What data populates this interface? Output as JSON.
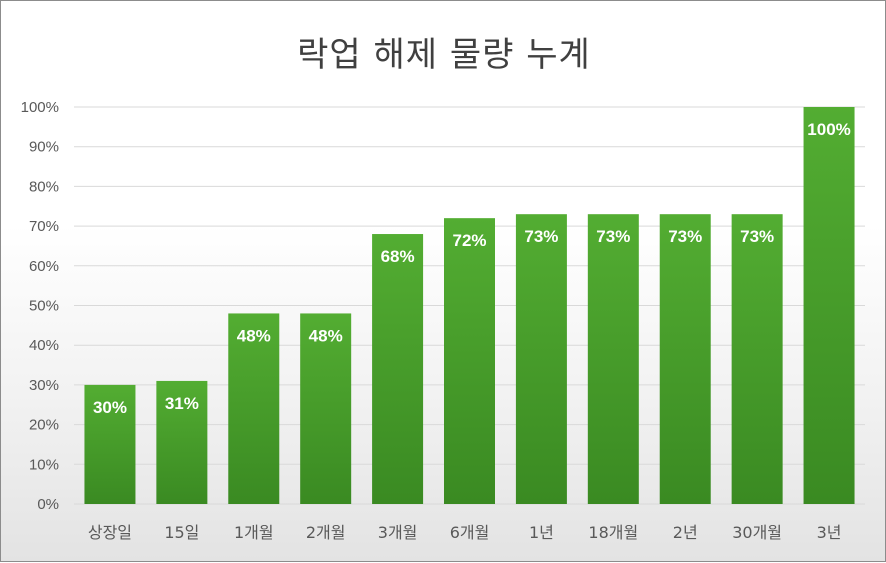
{
  "chart_data": {
    "type": "bar",
    "title": "락업 해제 물량 누계",
    "categories": [
      "상장일",
      "15일",
      "1개월",
      "2개월",
      "3개월",
      "6개월",
      "1년",
      "18개월",
      "2년",
      "30개월",
      "3년"
    ],
    "values": [
      30,
      31,
      48,
      48,
      68,
      72,
      73,
      73,
      73,
      73,
      100
    ],
    "data_labels": [
      "30%",
      "31%",
      "48%",
      "48%",
      "68%",
      "72%",
      "73%",
      "73%",
      "73%",
      "73%",
      "100%"
    ],
    "y_ticks": [
      "0%",
      "10%",
      "20%",
      "30%",
      "40%",
      "50%",
      "60%",
      "70%",
      "80%",
      "90%",
      "100%"
    ],
    "ylim": [
      0,
      100
    ],
    "grid": true,
    "legend": "none",
    "bar_color_top": "#53ad32",
    "bar_color_bottom": "#3a8a22",
    "gridline_color": "#d9d9d9"
  }
}
